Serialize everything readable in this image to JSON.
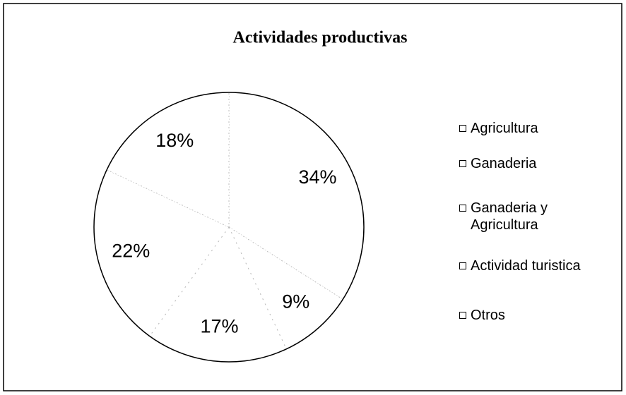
{
  "chart_data": {
    "type": "pie",
    "title": "Actividades productivas",
    "categories": [
      "Agricultura",
      "Ganaderia",
      "Ganaderia y Agricultura",
      "Actividad turistica",
      "Otros"
    ],
    "values": [
      34,
      9,
      17,
      22,
      18
    ],
    "value_labels": [
      "34%",
      "9%",
      "17%",
      "22%",
      "18%"
    ],
    "colors": [
      "#ffffff",
      "#ffffff",
      "#ffffff",
      "#ffffff",
      "#ffffff"
    ],
    "legend": "right"
  }
}
